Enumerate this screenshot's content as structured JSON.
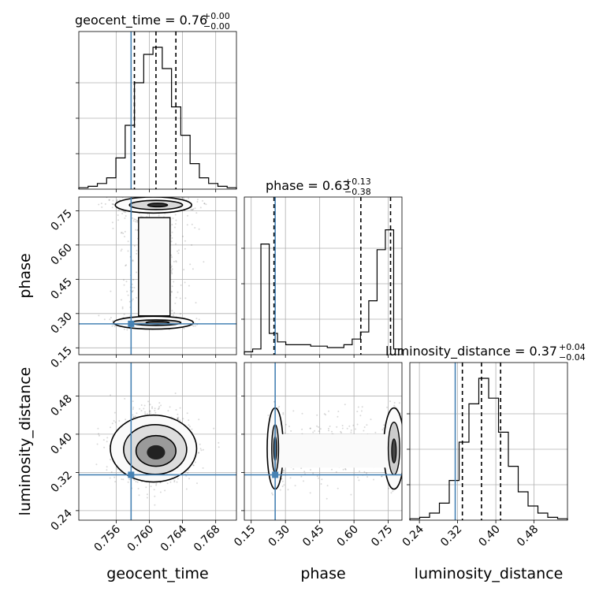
{
  "chart_data": {
    "type": "corner",
    "parameters": [
      "geocent_time",
      "phase",
      "luminosity_distance"
    ],
    "truths": {
      "geocent_time": 0.7578,
      "phase": 0.255,
      "luminosity_distance": 0.315
    },
    "quantiles": {
      "geocent_time": [
        0.7582,
        0.7608,
        0.7632
      ],
      "phase": [
        0.25,
        0.63,
        0.76
      ],
      "luminosity_distance": [
        0.33,
        0.37,
        0.41
      ]
    },
    "ranges": {
      "geocent_time": [
        0.7515,
        0.7705
      ],
      "phase": [
        0.12,
        0.81
      ],
      "luminosity_distance": [
        0.22,
        0.55
      ]
    },
    "ticks": {
      "geocent_time": [
        "0.756",
        "0.760",
        "0.764",
        "0.768"
      ],
      "phase": [
        "0.15",
        "0.30",
        "0.45",
        "0.60",
        "0.75"
      ],
      "luminosity_distance": [
        "0.24",
        "0.32",
        "0.40",
        "0.48"
      ]
    },
    "titles": {
      "geocent_time": {
        "label": "geocent_time = 0.76",
        "plus": "+0.00",
        "minus": "−0.00"
      },
      "phase": {
        "label": "phase = 0.63",
        "plus": "+0.13",
        "minus": "−0.38"
      },
      "luminosity_distance": {
        "label": "luminosity_distance = 0.37",
        "plus": "+0.04",
        "minus": "−0.04"
      }
    },
    "histograms": {
      "geocent_time": [
        0.01,
        0.02,
        0.04,
        0.08,
        0.22,
        0.45,
        0.75,
        0.95,
        1.0,
        0.85,
        0.58,
        0.38,
        0.18,
        0.08,
        0.04,
        0.02,
        0.01
      ],
      "phase": [
        0.02,
        0.04,
        0.78,
        0.15,
        0.09,
        0.07,
        0.07,
        0.07,
        0.06,
        0.06,
        0.05,
        0.05,
        0.07,
        0.11,
        0.16,
        0.38,
        0.74,
        0.88,
        0.04
      ],
      "luminosity_distance": [
        0.01,
        0.02,
        0.05,
        0.12,
        0.28,
        0.55,
        0.82,
        1.0,
        0.86,
        0.62,
        0.38,
        0.2,
        0.1,
        0.05,
        0.02,
        0.01
      ]
    },
    "grid": true
  }
}
